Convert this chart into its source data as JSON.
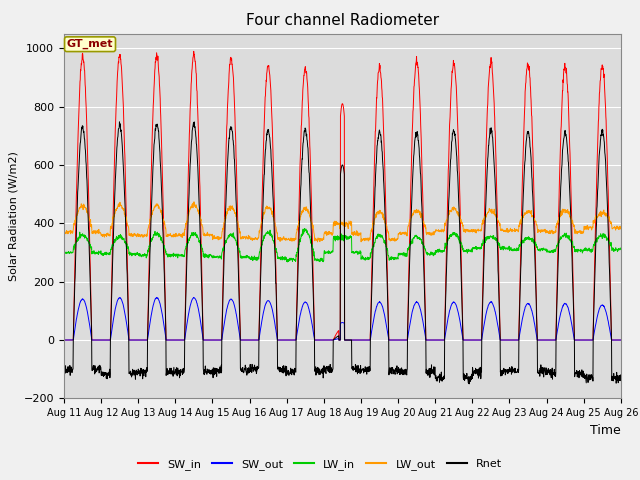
{
  "title": "Four channel Radiometer",
  "xlabel": "Time",
  "ylabel": "Solar Radiation (W/m2)",
  "ylim": [
    -200,
    1050
  ],
  "n_days": 15,
  "x_tick_labels": [
    "Aug 11",
    "Aug 12",
    "Aug 13",
    "Aug 14",
    "Aug 15",
    "Aug 16",
    "Aug 17",
    "Aug 18",
    "Aug 19",
    "Aug 20",
    "Aug 21",
    "Aug 22",
    "Aug 23",
    "Aug 24",
    "Aug 25",
    "Aug 26"
  ],
  "legend_labels": [
    "SW_in",
    "SW_out",
    "LW_in",
    "LW_out",
    "Rnet"
  ],
  "legend_colors": [
    "#ff0000",
    "#0000ff",
    "#00cc00",
    "#ff9900",
    "#000000"
  ],
  "station_label": "GT_met",
  "plot_bg_color": "#dcdcdc",
  "fig_bg_color": "#f0f0f0",
  "grid_color": "#ffffff",
  "SW_in_peak": [
    970,
    975,
    975,
    980,
    965,
    940,
    930,
    810,
    935,
    955,
    950,
    950,
    945,
    940,
    940
  ],
  "SW_out_peak": [
    140,
    145,
    145,
    145,
    140,
    135,
    130,
    60,
    130,
    130,
    130,
    130,
    125,
    125,
    120
  ],
  "LW_in_base": [
    310,
    305,
    300,
    300,
    295,
    290,
    285,
    310,
    290,
    305,
    315,
    325,
    320,
    315,
    320
  ],
  "LW_in_peak": [
    360,
    355,
    365,
    365,
    360,
    370,
    375,
    390,
    360,
    355,
    365,
    355,
    350,
    360,
    360
  ],
  "LW_out_base": [
    385,
    375,
    372,
    375,
    365,
    362,
    360,
    380,
    360,
    380,
    390,
    390,
    390,
    385,
    400
  ],
  "LW_out_peak": [
    460,
    462,
    462,
    465,
    455,
    455,
    452,
    450,
    440,
    445,
    450,
    445,
    440,
    445,
    435
  ],
  "Rnet_peak": [
    730,
    735,
    740,
    740,
    730,
    720,
    720,
    720,
    715,
    715,
    715,
    720,
    710,
    710,
    715
  ],
  "Rnet_night": [
    -100,
    -115,
    -110,
    -110,
    -105,
    -100,
    -110,
    -100,
    -105,
    -110,
    -130,
    -110,
    -105,
    -115,
    -130
  ]
}
